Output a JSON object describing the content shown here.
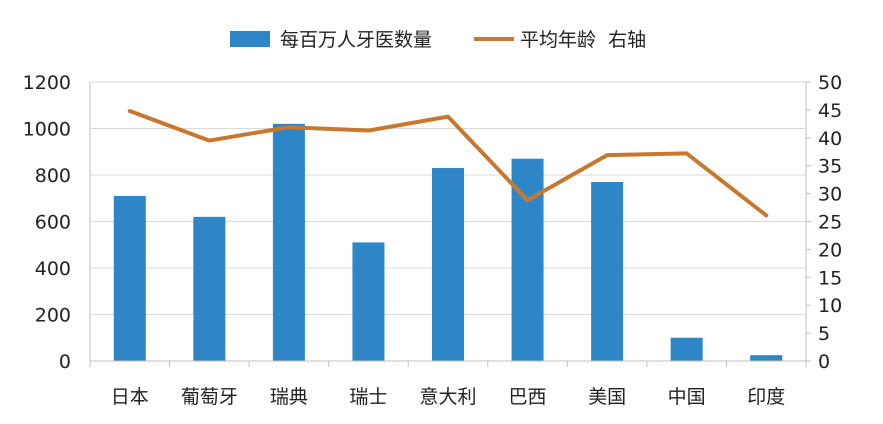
{
  "chart_data": {
    "type": "bar",
    "categories": [
      "日本",
      "葡萄牙",
      "瑞典",
      "瑞士",
      "意大利",
      "巴西",
      "美国",
      "中国",
      "印度"
    ],
    "series": [
      {
        "name": "每百万人牙医数量",
        "type": "bar",
        "axis": "left",
        "color": "#2E86C9",
        "values": [
          710,
          620,
          1020,
          510,
          830,
          870,
          770,
          100,
          25
        ]
      },
      {
        "name": "平均年龄  右轴",
        "type": "line",
        "axis": "right",
        "color": "#C8782E",
        "values": [
          44.8,
          39.5,
          41.9,
          41.3,
          43.8,
          28.8,
          36.9,
          37.2,
          26.1
        ]
      }
    ],
    "y_left": {
      "min": 0,
      "max": 1200,
      "step": 200
    },
    "y_right": {
      "min": 0,
      "max": 50,
      "step": 5
    },
    "grid": true,
    "legend_position": "top"
  }
}
